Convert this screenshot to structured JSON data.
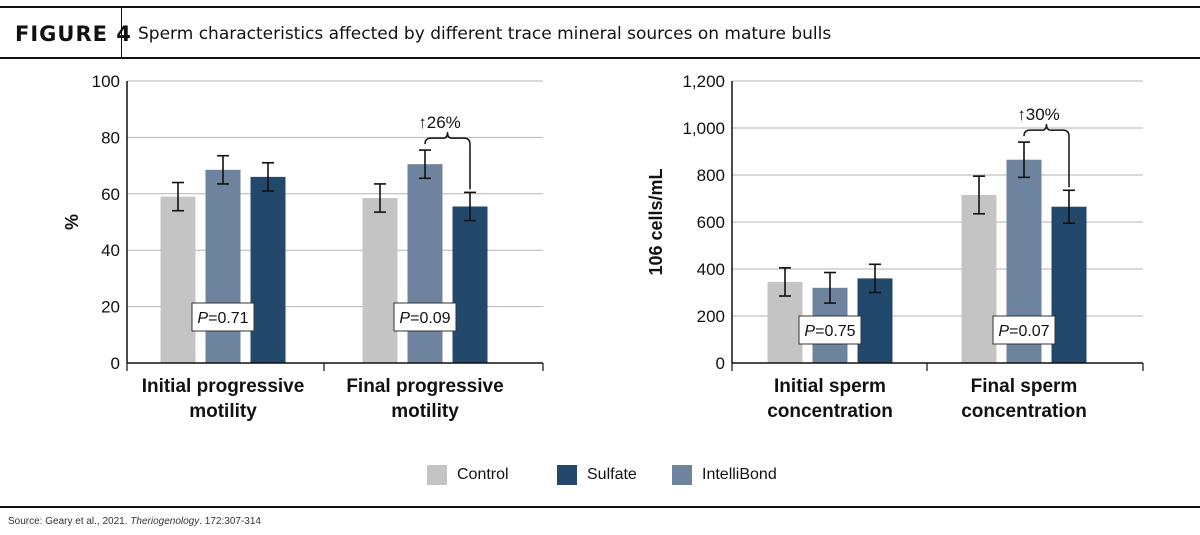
{
  "header": {
    "figure_label": "FIGURE 4",
    "title": "Sperm characteristics affected by different trace mineral sources on mature bulls"
  },
  "source": {
    "prefix": "Source: Geary et al., 2021. ",
    "journal": "Theriogenology",
    "suffix": ". 172:307-314"
  },
  "colors": {
    "Control": "#c4c4c4",
    "Sulfate": "#22486b",
    "IntelliBond": "#6e839e"
  },
  "legend": [
    {
      "name": "Control",
      "color": "#c4c4c4"
    },
    {
      "name": "Sulfate",
      "color": "#22486b"
    },
    {
      "name": "IntelliBond",
      "color": "#6e839e"
    }
  ],
  "chart_data": [
    {
      "type": "bar",
      "ylabel": "%",
      "ylim": [
        0,
        100
      ],
      "yticks": [
        0,
        20,
        40,
        60,
        80,
        100
      ],
      "ytick_labels": [
        "0",
        "20",
        "40",
        "60",
        "80",
        "100"
      ],
      "grid": true,
      "series_order": [
        "Control",
        "IntelliBond",
        "Sulfate"
      ],
      "groups": [
        {
          "label_lines": [
            "Initial progressive",
            "motility"
          ],
          "p_prefix": "P",
          "p_value": "=0.71",
          "values": {
            "Control": 59,
            "IntelliBond": 68.5,
            "Sulfate": 66
          },
          "errors": {
            "Control": 5,
            "IntelliBond": 5,
            "Sulfate": 5
          }
        },
        {
          "label_lines": [
            "Final progressive",
            "motility"
          ],
          "p_prefix": "P",
          "p_value": "=0.09",
          "values": {
            "Control": 58.5,
            "IntelliBond": 70.5,
            "Sulfate": 55.5
          },
          "errors": {
            "Control": 5,
            "IntelliBond": 5,
            "Sulfate": 5
          },
          "annotation": "↑26%"
        }
      ]
    },
    {
      "type": "bar",
      "ylabel": "106 cells/mL",
      "ylim": [
        0,
        1200
      ],
      "yticks": [
        0,
        200,
        400,
        600,
        800,
        1000,
        1200
      ],
      "ytick_labels": [
        "0",
        "200",
        "400",
        "600",
        "800",
        "1,000",
        "1,200"
      ],
      "grid": true,
      "series_order": [
        "Control",
        "IntelliBond",
        "Sulfate"
      ],
      "groups": [
        {
          "label_lines": [
            "Initial sperm",
            "concentration"
          ],
          "p_prefix": "P",
          "p_value": "=0.75",
          "values": {
            "Control": 345,
            "IntelliBond": 320,
            "Sulfate": 360
          },
          "errors": {
            "Control": 60,
            "IntelliBond": 65,
            "Sulfate": 60
          }
        },
        {
          "label_lines": [
            "Final sperm",
            "concentration"
          ],
          "p_prefix": "P",
          "p_value": "=0.07",
          "values": {
            "Control": 715,
            "IntelliBond": 865,
            "Sulfate": 665
          },
          "errors": {
            "Control": 80,
            "IntelliBond": 75,
            "Sulfate": 70
          },
          "annotation": "↑30%"
        }
      ]
    }
  ]
}
